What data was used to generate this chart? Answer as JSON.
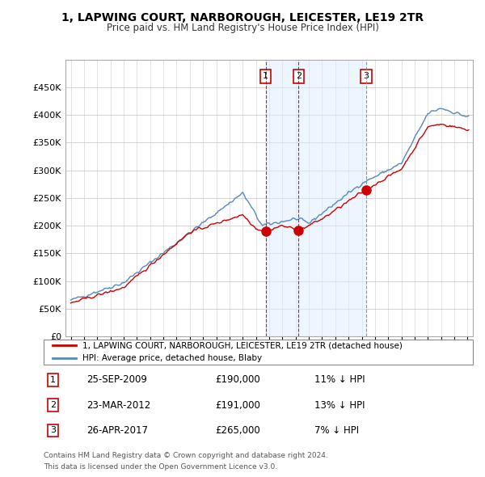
{
  "title": "1, LAPWING COURT, NARBOROUGH, LEICESTER, LE19 2TR",
  "subtitle": "Price paid vs. HM Land Registry's House Price Index (HPI)",
  "legend_label_red": "1, LAPWING COURT, NARBOROUGH, LEICESTER, LE19 2TR (detached house)",
  "legend_label_blue": "HPI: Average price, detached house, Blaby",
  "footer1": "Contains HM Land Registry data © Crown copyright and database right 2024.",
  "footer2": "This data is licensed under the Open Government Licence v3.0.",
  "transactions": [
    {
      "num": 1,
      "date": "25-SEP-2009",
      "price": "£190,000",
      "hpi": "11% ↓ HPI",
      "year": 2009.73,
      "price_val": 190000,
      "vline_style": "red"
    },
    {
      "num": 2,
      "date": "23-MAR-2012",
      "price": "£191,000",
      "hpi": "13% ↓ HPI",
      "year": 2012.23,
      "price_val": 191000,
      "vline_style": "red"
    },
    {
      "num": 3,
      "date": "26-APR-2017",
      "price": "£265,000",
      "hpi": "7% ↓ HPI",
      "year": 2017.32,
      "price_val": 265000,
      "vline_style": "grey"
    }
  ],
  "red_color": "#cc0000",
  "blue_color": "#5588bb",
  "blue_fill": "#ddeeff",
  "vline_red": "#cc0000",
  "vline_grey": "#888888",
  "grid_color": "#cccccc",
  "bg_color": "#ffffff",
  "plot_bg": "#ffffff",
  "ylim": [
    0,
    500000
  ],
  "yticks": [
    0,
    50000,
    100000,
    150000,
    200000,
    250000,
    300000,
    350000,
    400000,
    450000
  ],
  "xlim_start": 1994.6,
  "xlim_end": 2025.4,
  "xticks": [
    1995,
    1996,
    1997,
    1998,
    1999,
    2000,
    2001,
    2002,
    2003,
    2004,
    2005,
    2006,
    2007,
    2008,
    2009,
    2010,
    2011,
    2012,
    2013,
    2014,
    2015,
    2016,
    2017,
    2018,
    2019,
    2020,
    2021,
    2022,
    2023,
    2024,
    2025
  ]
}
